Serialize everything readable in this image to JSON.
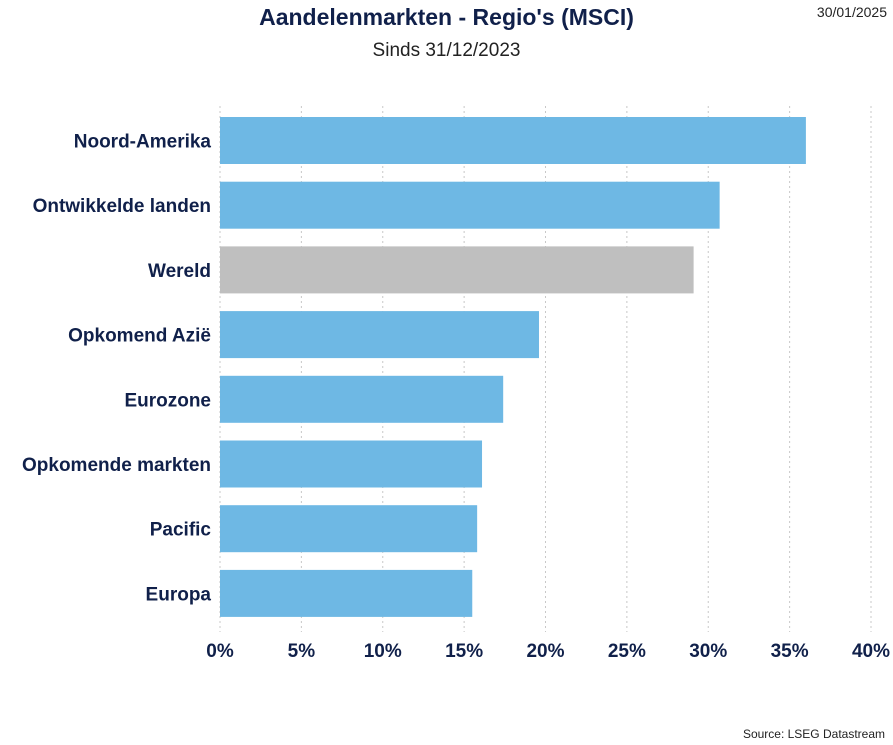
{
  "header": {
    "title": "Aandelenmarkten - Regio's (MSCI)",
    "subtitle": "Sinds 31/12/2023",
    "date": "30/01/2025"
  },
  "footer": {
    "source": "Source: LSEG Datastream"
  },
  "colors": {
    "bar": "#6eb8e4",
    "highlight": "#bfbfbf",
    "text": "#10204a",
    "grid": "#c8c8c8"
  },
  "chart_data": {
    "type": "bar",
    "orientation": "horizontal",
    "categories": [
      "Noord-Amerika",
      "Ontwikkelde landen",
      "Wereld",
      "Opkomend Azië",
      "Eurozone",
      "Opkomende markten",
      "Pacific",
      "Europa"
    ],
    "values": [
      36.0,
      30.7,
      29.1,
      19.6,
      17.4,
      16.1,
      15.8,
      15.5
    ],
    "highlight": "Wereld",
    "xlim": [
      0,
      40
    ],
    "xticks": [
      0,
      5,
      10,
      15,
      20,
      25,
      30,
      35,
      40
    ],
    "xtick_labels": [
      "0%",
      "5%",
      "10%",
      "15%",
      "20%",
      "25%",
      "30%",
      "35%",
      "40%"
    ],
    "grid": true
  }
}
